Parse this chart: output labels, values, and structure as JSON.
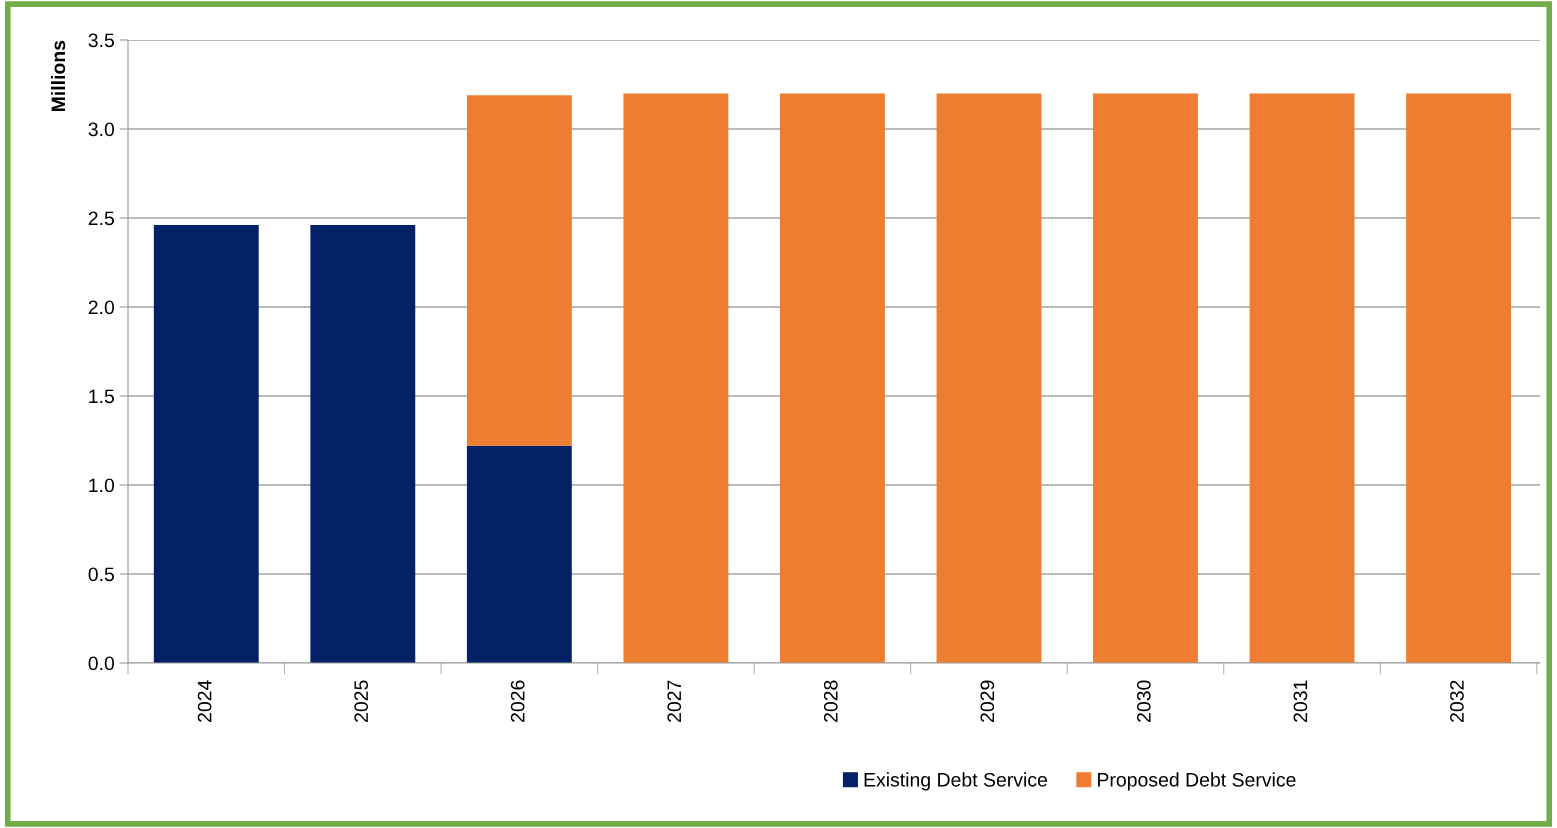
{
  "chart_data": {
    "type": "bar",
    "stacked": true,
    "ylabel": "Millions",
    "categories": [
      "2024",
      "2025",
      "2026",
      "2027",
      "2028",
      "2029",
      "2030",
      "2031",
      "2032"
    ],
    "series": [
      {
        "name": "Existing Debt Service",
        "color": "#042066",
        "values": [
          2.46,
          2.46,
          1.22,
          null,
          null,
          null,
          null,
          null,
          null
        ]
      },
      {
        "name": "Proposed Debt Service",
        "color": "#ed7d31",
        "values": [
          null,
          null,
          1.97,
          3.2,
          3.2,
          3.2,
          3.2,
          3.2,
          3.2
        ]
      }
    ],
    "ylim": [
      0,
      3.5
    ],
    "yticks": [
      {
        "value": 0,
        "label": "0.0"
      },
      {
        "value": 0.5,
        "label": "0.5"
      },
      {
        "value": 1,
        "label": "1.0"
      },
      {
        "value": 1.5,
        "label": "1.5"
      },
      {
        "value": 2,
        "label": "2.0"
      },
      {
        "value": 2.5,
        "label": "2.5"
      },
      {
        "value": 3,
        "label": "3.0"
      },
      {
        "value": 3.5,
        "label": "3.5"
      }
    ],
    "grid": "y",
    "legend": "bottom"
  }
}
